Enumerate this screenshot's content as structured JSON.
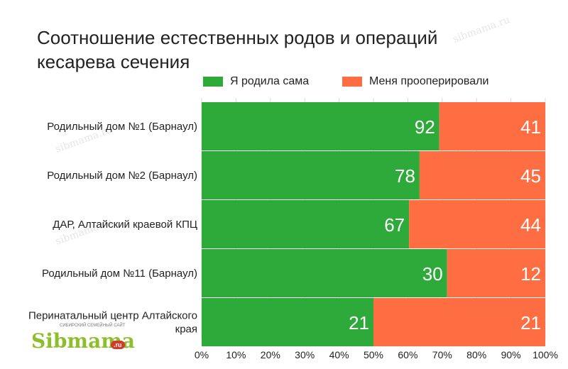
{
  "title": "Соотношение естественных родов и операций кесарева сечения",
  "logo": {
    "text": "Sibmama",
    "suffix": ".ru",
    "tagline": "СИБИРСКИЙ СЕМЕЙНЫЙ САЙТ",
    "watermark_text": "sibmama.ru"
  },
  "colors": {
    "series_1": "#2eaa3a",
    "series_2": "#ff6e42"
  },
  "chart_data": {
    "type": "bar",
    "orientation": "horizontal",
    "stacked": "percent",
    "title": "Соотношение естественных родов и операций кесарева сечения",
    "legend_position": "top",
    "categories": [
      "Родильный дом №1 (Барнаул)",
      "Родильный дом №2 (Барнаул)",
      "ДАР, Алтайский краевой КПЦ",
      "Родильный дом №11 (Барнаул)",
      "Перинатальный центр Алтайского края"
    ],
    "series": [
      {
        "name": "Я родила сама",
        "values": [
          92,
          78,
          67,
          30,
          21
        ]
      },
      {
        "name": "Меня прооперировали",
        "values": [
          41,
          45,
          44,
          12,
          21
        ]
      }
    ],
    "xlim": [
      0,
      100
    ],
    "xticks": [
      "0%",
      "10%",
      "20%",
      "30%",
      "40%",
      "50%",
      "60%",
      "70%",
      "80%",
      "90%",
      "100%"
    ],
    "grid": true
  }
}
